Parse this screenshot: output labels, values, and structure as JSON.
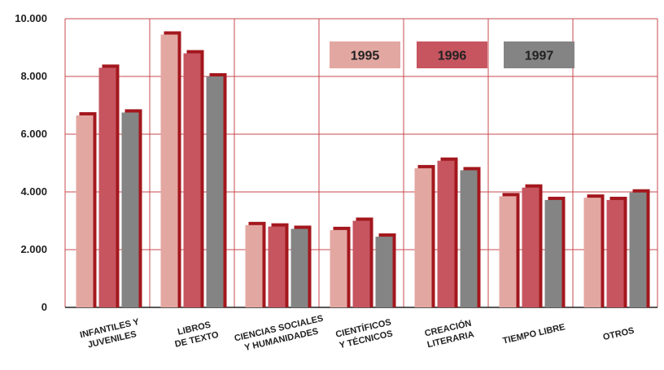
{
  "chart_data": {
    "type": "bar",
    "categories": [
      [
        "INFANTILES Y",
        "JUVENILES"
      ],
      [
        "LIBROS",
        "DE TEXTO"
      ],
      [
        "CIENCIAS SOCIALES",
        "Y HUMANIDADES"
      ],
      [
        "CIENTÍFICOS",
        "Y TÉCNICOS"
      ],
      [
        "CREACIÓN",
        "LITERARIA"
      ],
      [
        "TIEMPO LIBRE"
      ],
      [
        "OTROS"
      ]
    ],
    "series": [
      {
        "name": "1995",
        "color": "#e3a7a2",
        "values": [
          6650,
          9450,
          2850,
          2680,
          4820,
          3850,
          3800
        ]
      },
      {
        "name": "1996",
        "color": "#c65560",
        "values": [
          8300,
          8800,
          2800,
          3000,
          5080,
          4150,
          3720
        ]
      },
      {
        "name": "1997",
        "color": "#848484",
        "values": [
          6750,
          8000,
          2720,
          2450,
          4750,
          3720,
          3980
        ]
      }
    ],
    "shadow_color": "#a3171d",
    "grid_color": "#c8484f",
    "ylim": [
      0,
      10000
    ],
    "yticks": [
      {
        "value": 0,
        "label": "0"
      },
      {
        "value": 2000,
        "label": "2.000"
      },
      {
        "value": 4000,
        "label": "4.000"
      },
      {
        "value": 6000,
        "label": "6.000"
      },
      {
        "value": 8000,
        "label": "8.000"
      },
      {
        "value": 10000,
        "label": "10.000"
      }
    ],
    "grid": true,
    "legend": "top-center"
  }
}
